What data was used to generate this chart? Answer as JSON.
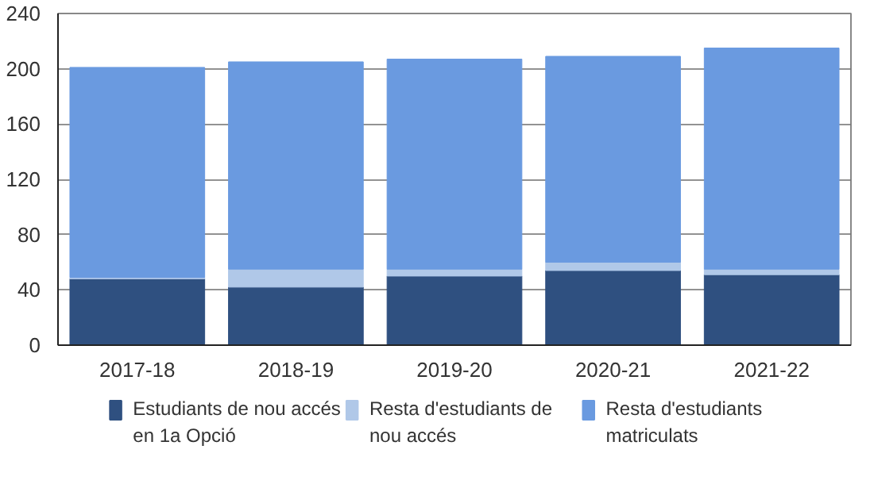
{
  "chart_data": {
    "type": "bar",
    "stacked": true,
    "categories": [
      "2017-18",
      "2018-19",
      "2019-20",
      "2020-21",
      "2021-22"
    ],
    "series": [
      {
        "name": "Estudiants de nou accés en 1a Opció",
        "color": "#2f5080",
        "values": [
          48,
          42,
          50,
          54,
          51
        ]
      },
      {
        "name": "Resta d'estudiants de nou accés",
        "color": "#b0c8e8",
        "values": [
          1,
          13,
          5,
          6,
          4
        ]
      },
      {
        "name": "Resta d'estudiants matriculats",
        "color": "#6a9ae0",
        "values": [
          152,
          150,
          152,
          149,
          160
        ]
      }
    ],
    "ylim": [
      0,
      240
    ],
    "yticks": [
      0,
      40,
      80,
      120,
      160,
      200,
      240
    ],
    "grid": "y",
    "legend": "bottom"
  }
}
